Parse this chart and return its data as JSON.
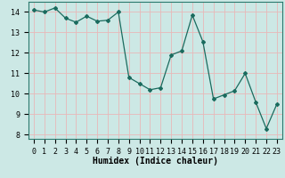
{
  "x": [
    0,
    1,
    2,
    3,
    4,
    5,
    6,
    7,
    8,
    9,
    10,
    11,
    12,
    13,
    14,
    15,
    16,
    17,
    18,
    19,
    20,
    21,
    22,
    23
  ],
  "y": [
    14.1,
    14.0,
    14.2,
    13.7,
    13.5,
    13.8,
    13.55,
    13.6,
    14.0,
    10.8,
    10.5,
    10.2,
    10.3,
    11.9,
    12.1,
    13.85,
    12.55,
    9.75,
    9.95,
    10.15,
    11.0,
    9.6,
    8.3,
    9.5
  ],
  "line_color": "#1a6b5e",
  "bg_color": "#cce8e5",
  "grid_color": "#e8b8b8",
  "xlabel": "Humidex (Indice chaleur)",
  "ylim": [
    7.8,
    14.5
  ],
  "yticks": [
    8,
    9,
    10,
    11,
    12,
    13,
    14
  ],
  "xticks": [
    0,
    1,
    2,
    3,
    4,
    5,
    6,
    7,
    8,
    9,
    10,
    11,
    12,
    13,
    14,
    15,
    16,
    17,
    18,
    19,
    20,
    21,
    22,
    23
  ],
  "label_fontsize": 7,
  "tick_fontsize": 6,
  "marker": "D",
  "marker_size": 2.0,
  "linewidth": 0.9
}
